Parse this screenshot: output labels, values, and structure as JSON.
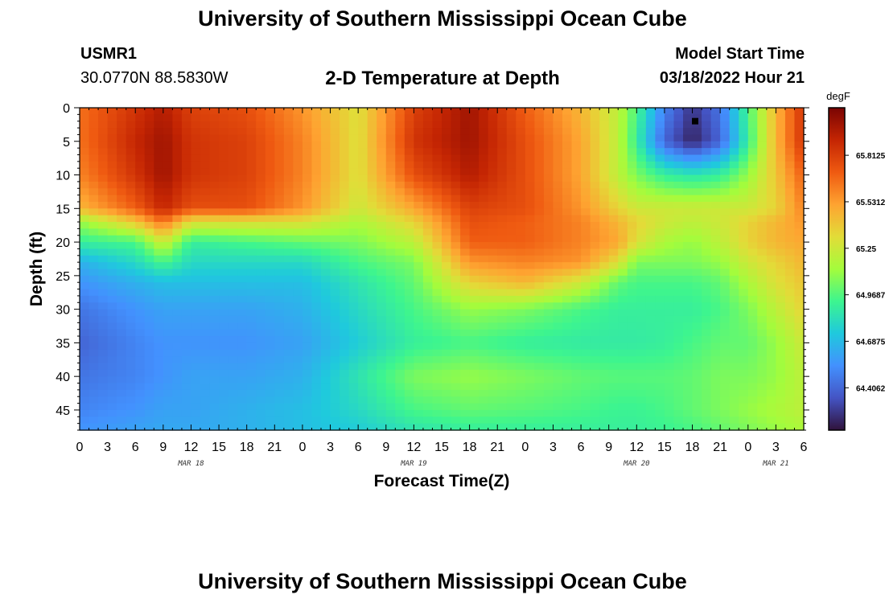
{
  "header": {
    "title": "University of Southern Mississippi Ocean Cube",
    "station_id": "USMR1",
    "station_location": "30.0770N  88.5830W",
    "subtitle": "2-D Temperature at Depth",
    "model_start_label": "Model Start Time",
    "model_start_value": "03/18/2022 Hour 21"
  },
  "footer": {
    "title": "University of Southern Mississippi Ocean Cube"
  },
  "colors": {
    "colormap": [
      "#30123b",
      "#4454c4",
      "#4391fe",
      "#1fc9dd",
      "#3df58f",
      "#a4fc3c",
      "#e2dc38",
      "#fea331",
      "#ef5a11",
      "#c42503",
      "#7a0403"
    ]
  },
  "chart_data": {
    "type": "heatmap",
    "xlabel": "Forecast Time(Z)",
    "ylabel": "Depth (ft)",
    "x_hours": [
      0,
      3,
      6,
      9,
      12,
      15,
      18,
      21,
      24,
      27,
      30,
      33,
      36,
      39,
      42,
      45,
      48,
      51,
      54,
      57,
      60,
      63,
      66,
      69,
      72,
      75,
      78
    ],
    "x_tick_labels": [
      "0",
      "3",
      "6",
      "9",
      "12",
      "15",
      "18",
      "21",
      "0",
      "3",
      "6",
      "9",
      "12",
      "15",
      "18",
      "21",
      "0",
      "3",
      "6",
      "9",
      "12",
      "15",
      "18",
      "21",
      "0",
      "3",
      "6"
    ],
    "x_range_hours": [
      0,
      78
    ],
    "date_labels": [
      {
        "text": "MAR 18",
        "hour": 12
      },
      {
        "text": "MAR 19",
        "hour": 36
      },
      {
        "text": "MAR 20",
        "hour": 60
      },
      {
        "text": "MAR 21",
        "hour": 75
      }
    ],
    "y_ticks": [
      0,
      5,
      10,
      15,
      20,
      25,
      30,
      35,
      40,
      45
    ],
    "y_range_ft": [
      0,
      48
    ],
    "y_inverted": true,
    "colorbar": {
      "unit": "degF",
      "range": [
        64.15,
        66.1
      ],
      "ticks": [
        65.8125,
        65.53125,
        65.25,
        64.96875,
        64.6875,
        64.40625
      ],
      "tick_labels": [
        "65.8125",
        "65.53125",
        "65.25",
        "64.96875",
        "64.6875",
        "64.40625"
      ]
    },
    "marker": {
      "hour": 66.3,
      "depth_ft": 2
    },
    "field_grid": {
      "hours": [
        0,
        6,
        9,
        12,
        18,
        24,
        30,
        36,
        42,
        48,
        54,
        58,
        60,
        63,
        66,
        69,
        72,
        75,
        78
      ],
      "depths_ft": [
        0,
        5,
        10,
        15,
        17,
        20,
        23,
        26,
        30,
        35,
        40,
        45,
        48
      ],
      "temps_degF": [
        [
          65.65,
          65.85,
          65.95,
          65.8,
          65.75,
          65.55,
          65.3,
          65.8,
          66.0,
          65.7,
          65.45,
          65.2,
          64.95,
          64.5,
          64.25,
          64.45,
          64.95,
          65.45,
          65.85
        ],
        [
          65.65,
          65.9,
          66.0,
          65.85,
          65.8,
          65.6,
          65.3,
          65.85,
          66.0,
          65.75,
          65.5,
          65.2,
          64.9,
          64.4,
          64.2,
          64.4,
          64.9,
          65.45,
          65.85
        ],
        [
          65.6,
          65.85,
          66.0,
          65.85,
          65.8,
          65.6,
          65.3,
          65.75,
          65.95,
          65.75,
          65.5,
          65.2,
          65.05,
          64.9,
          64.85,
          64.9,
          65.1,
          65.4,
          65.7
        ],
        [
          65.45,
          65.7,
          65.9,
          65.75,
          65.75,
          65.55,
          65.25,
          65.5,
          65.8,
          65.75,
          65.55,
          65.35,
          65.25,
          65.25,
          65.25,
          65.25,
          65.25,
          65.35,
          65.6
        ],
        [
          65.1,
          65.4,
          65.65,
          65.3,
          65.3,
          65.3,
          65.15,
          65.35,
          65.75,
          65.7,
          65.6,
          65.45,
          65.35,
          65.25,
          65.2,
          65.25,
          65.35,
          65.45,
          65.55
        ],
        [
          64.9,
          64.95,
          65.25,
          64.9,
          64.95,
          65.0,
          65.05,
          65.2,
          65.7,
          65.7,
          65.6,
          65.5,
          65.3,
          65.15,
          65.1,
          65.2,
          65.35,
          65.45,
          65.5
        ],
        [
          64.65,
          64.8,
          64.95,
          64.8,
          64.8,
          64.8,
          64.95,
          65.05,
          65.55,
          65.6,
          65.55,
          65.3,
          65.05,
          65.05,
          65.05,
          65.1,
          65.25,
          65.35,
          65.45
        ],
        [
          64.55,
          64.65,
          64.7,
          64.7,
          64.7,
          64.7,
          64.85,
          65.0,
          65.35,
          65.45,
          65.25,
          65.0,
          64.95,
          64.95,
          64.95,
          65.0,
          65.15,
          65.3,
          65.4
        ],
        [
          64.45,
          64.55,
          64.6,
          64.6,
          64.6,
          64.65,
          64.8,
          64.95,
          65.1,
          65.05,
          64.95,
          64.9,
          64.9,
          64.9,
          64.9,
          64.95,
          65.05,
          65.2,
          65.35
        ],
        [
          64.4,
          64.5,
          64.55,
          64.55,
          64.55,
          64.6,
          64.75,
          64.9,
          64.95,
          64.9,
          64.88,
          64.88,
          64.88,
          64.9,
          64.95,
          65.0,
          65.0,
          65.1,
          65.25
        ],
        [
          64.45,
          64.5,
          64.55,
          64.6,
          64.6,
          64.65,
          64.85,
          65.05,
          65.1,
          65.05,
          65.0,
          64.98,
          64.98,
          64.98,
          65.0,
          65.05,
          65.05,
          65.1,
          65.2
        ],
        [
          64.5,
          64.55,
          64.6,
          64.6,
          64.65,
          64.7,
          64.8,
          64.95,
          65.0,
          64.98,
          64.95,
          64.92,
          64.92,
          64.95,
          65.0,
          65.05,
          65.1,
          65.15,
          65.2
        ],
        [
          64.55,
          64.6,
          64.62,
          64.62,
          64.65,
          64.7,
          64.75,
          64.85,
          64.9,
          64.9,
          64.9,
          64.9,
          64.9,
          64.92,
          64.95,
          65.0,
          65.05,
          65.1,
          65.15
        ]
      ]
    }
  }
}
